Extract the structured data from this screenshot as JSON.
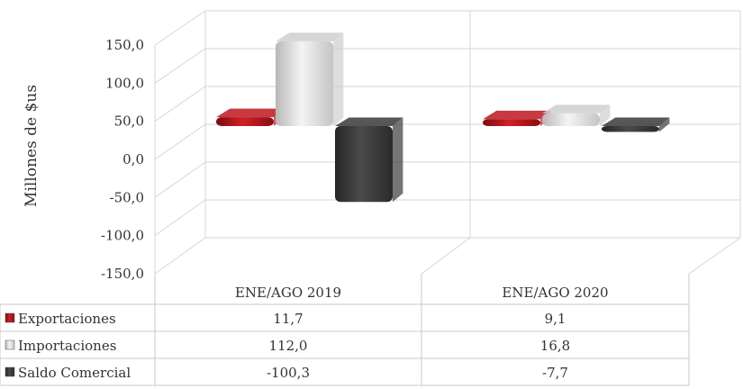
{
  "chart_data": {
    "type": "bar",
    "categories": [
      "ENE/AGO 2019",
      "ENE/AGO 2020"
    ],
    "series": [
      {
        "name": "Exportaciones",
        "values": [
          11.7,
          9.1
        ],
        "display": [
          "11,7",
          "9,1"
        ],
        "color": "#c0181e"
      },
      {
        "name": "Importaciones",
        "values": [
          112.0,
          16.8
        ],
        "display": [
          "112,0",
          "16,8"
        ],
        "color": "#cfcfcf"
      },
      {
        "name": "Saldo Comercial",
        "values": [
          -100.3,
          -7.7
        ],
        "display": [
          "-100,3",
          "-7,7"
        ],
        "color": "#3a3a3a"
      }
    ],
    "ylabel": "Millones de $us",
    "ylim": [
      -150,
      150
    ],
    "yticks": [
      150,
      100,
      50,
      0,
      -50,
      -100,
      -150
    ],
    "ytick_labels": [
      "150,0",
      "100,0",
      "50,0",
      "0,0",
      "-50,0",
      "-100,0",
      "-150,0"
    ],
    "grid": true,
    "data_table": true
  }
}
